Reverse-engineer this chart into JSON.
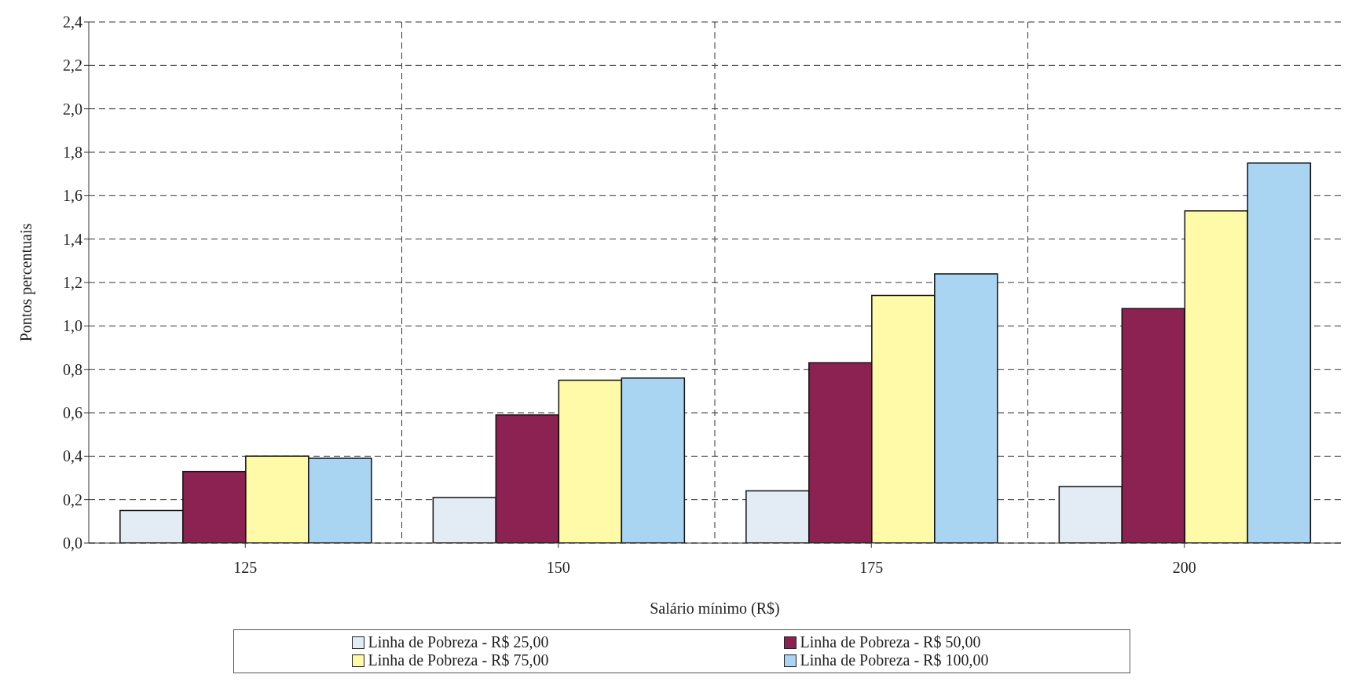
{
  "chart_data": {
    "type": "bar",
    "xlabel": "Salário mínimo (R$)",
    "ylabel": "Pontos percentuais",
    "categories": [
      "125",
      "150",
      "175",
      "200"
    ],
    "series": [
      {
        "name": "Linha de Pobreza - R$ 25,00",
        "color": "#e3ebf5",
        "values": [
          0.15,
          0.21,
          0.24,
          0.26
        ]
      },
      {
        "name": "Linha de Pobreza - R$ 50,00",
        "color": "#8b2252",
        "values": [
          0.33,
          0.59,
          0.83,
          1.08
        ]
      },
      {
        "name": "Linha de Pobreza - R$ 75,00",
        "color": "#fffaa8",
        "values": [
          0.4,
          0.75,
          1.14,
          1.53
        ]
      },
      {
        "name": "Linha de Pobreza - R$ 100,00",
        "color": "#a9d4f2",
        "values": [
          0.39,
          0.76,
          1.24,
          1.75
        ]
      }
    ],
    "ylim": [
      0,
      2.4
    ],
    "yticks": [
      {
        "value": 0,
        "label": "0,0"
      },
      {
        "value": 0.2,
        "label": "0,2"
      },
      {
        "value": 0.4,
        "label": "0,4"
      },
      {
        "value": 0.6,
        "label": "0,6"
      },
      {
        "value": 0.8,
        "label": "0,8"
      },
      {
        "value": 1.0,
        "label": "1,0"
      },
      {
        "value": 1.2,
        "label": "1,2"
      },
      {
        "value": 1.4,
        "label": "1,4"
      },
      {
        "value": 1.6,
        "label": "1,6"
      },
      {
        "value": 1.8,
        "label": "1,8"
      },
      {
        "value": 2.0,
        "label": "2,0"
      },
      {
        "value": 2.2,
        "label": "2,2"
      },
      {
        "value": 2.4,
        "label": "2,4"
      }
    ],
    "grid": true,
    "legend": "bottom"
  }
}
